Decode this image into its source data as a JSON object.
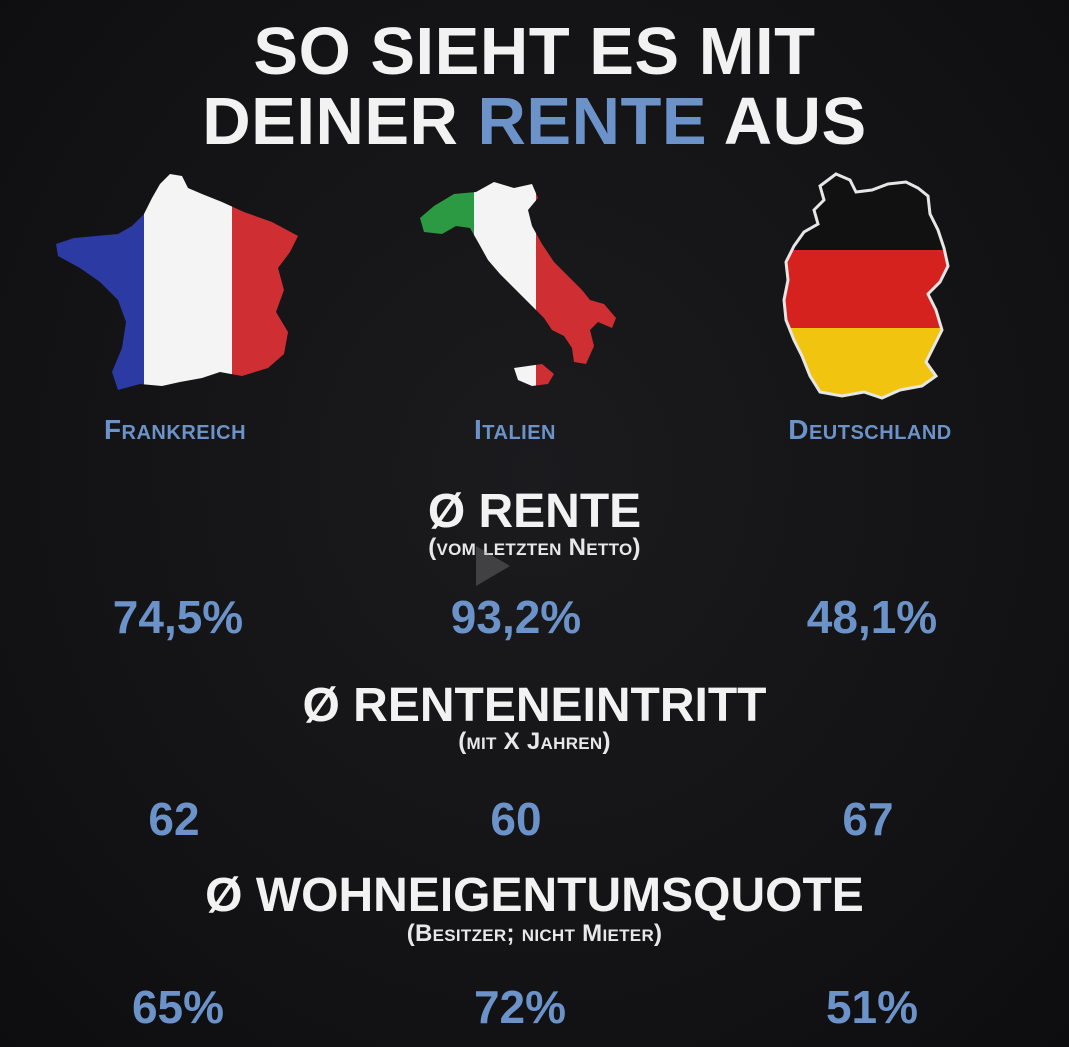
{
  "title": {
    "line1": "SO SIEHT ES MIT",
    "line2_prefix": "DEINER ",
    "line2_highlight": "RENTE",
    "line2_suffix": " AUS"
  },
  "countries": [
    {
      "name": "Frankreich",
      "flag_icon": "france-map-flag-icon",
      "colors": [
        "#2c3aa4",
        "#f4f4f4",
        "#cf2f32"
      ]
    },
    {
      "name": "Italien",
      "flag_icon": "italy-map-flag-icon",
      "colors": [
        "#2c9a42",
        "#f4f4f4",
        "#cf2f32"
      ]
    },
    {
      "name": "Deutschland",
      "flag_icon": "germany-map-flag-icon",
      "colors": [
        "#111111",
        "#d5221e",
        "#f1c40f"
      ]
    }
  ],
  "sections": [
    {
      "title": "Ø RENTE",
      "subtitle": "(vom letzten Netto)",
      "values": [
        "74,5%",
        "93,2%",
        "48,1%"
      ]
    },
    {
      "title": "Ø RENTENEINTRITT",
      "subtitle": "(mit X Jahren)",
      "values": [
        "62",
        "60",
        "67"
      ]
    },
    {
      "title": "Ø WOHNEIGENTUMSQUOTE",
      "subtitle": "(Besitzer; nicht Mieter)",
      "values": [
        "65%",
        "72%",
        "51%"
      ]
    }
  ],
  "colors": {
    "accent": "#6b93c9",
    "background": "#141416",
    "text": "#f2f2f2"
  }
}
